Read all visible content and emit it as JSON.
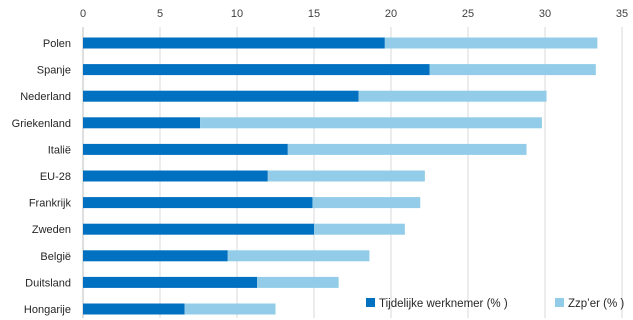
{
  "chart_data": {
    "type": "bar",
    "orientation": "horizontal",
    "stacked": true,
    "title": "",
    "xlabel": "",
    "ylabel": "",
    "xlim": [
      0,
      35
    ],
    "xticks": [
      0,
      5,
      10,
      15,
      20,
      25,
      30,
      35
    ],
    "grid": true,
    "legend_position": "bottom-right",
    "categories": [
      "Polen",
      "Spanje",
      "Nederland",
      "Griekenland",
      "Italië",
      "EU-28",
      "Frankrijk",
      "Zweden",
      "België",
      "Duitsland",
      "Hongarije"
    ],
    "series": [
      {
        "name": "Tijdelijke werknemer (% )",
        "color": "#0070c0",
        "values": [
          19.6,
          22.5,
          17.9,
          7.6,
          13.3,
          12.0,
          14.9,
          15.0,
          9.4,
          11.3,
          6.6
        ]
      },
      {
        "name": "Zzp’er (% )",
        "color": "#92cce8",
        "values": [
          13.8,
          10.8,
          12.2,
          22.2,
          15.5,
          10.2,
          7.0,
          5.9,
          9.2,
          5.3,
          5.9
        ]
      }
    ]
  }
}
